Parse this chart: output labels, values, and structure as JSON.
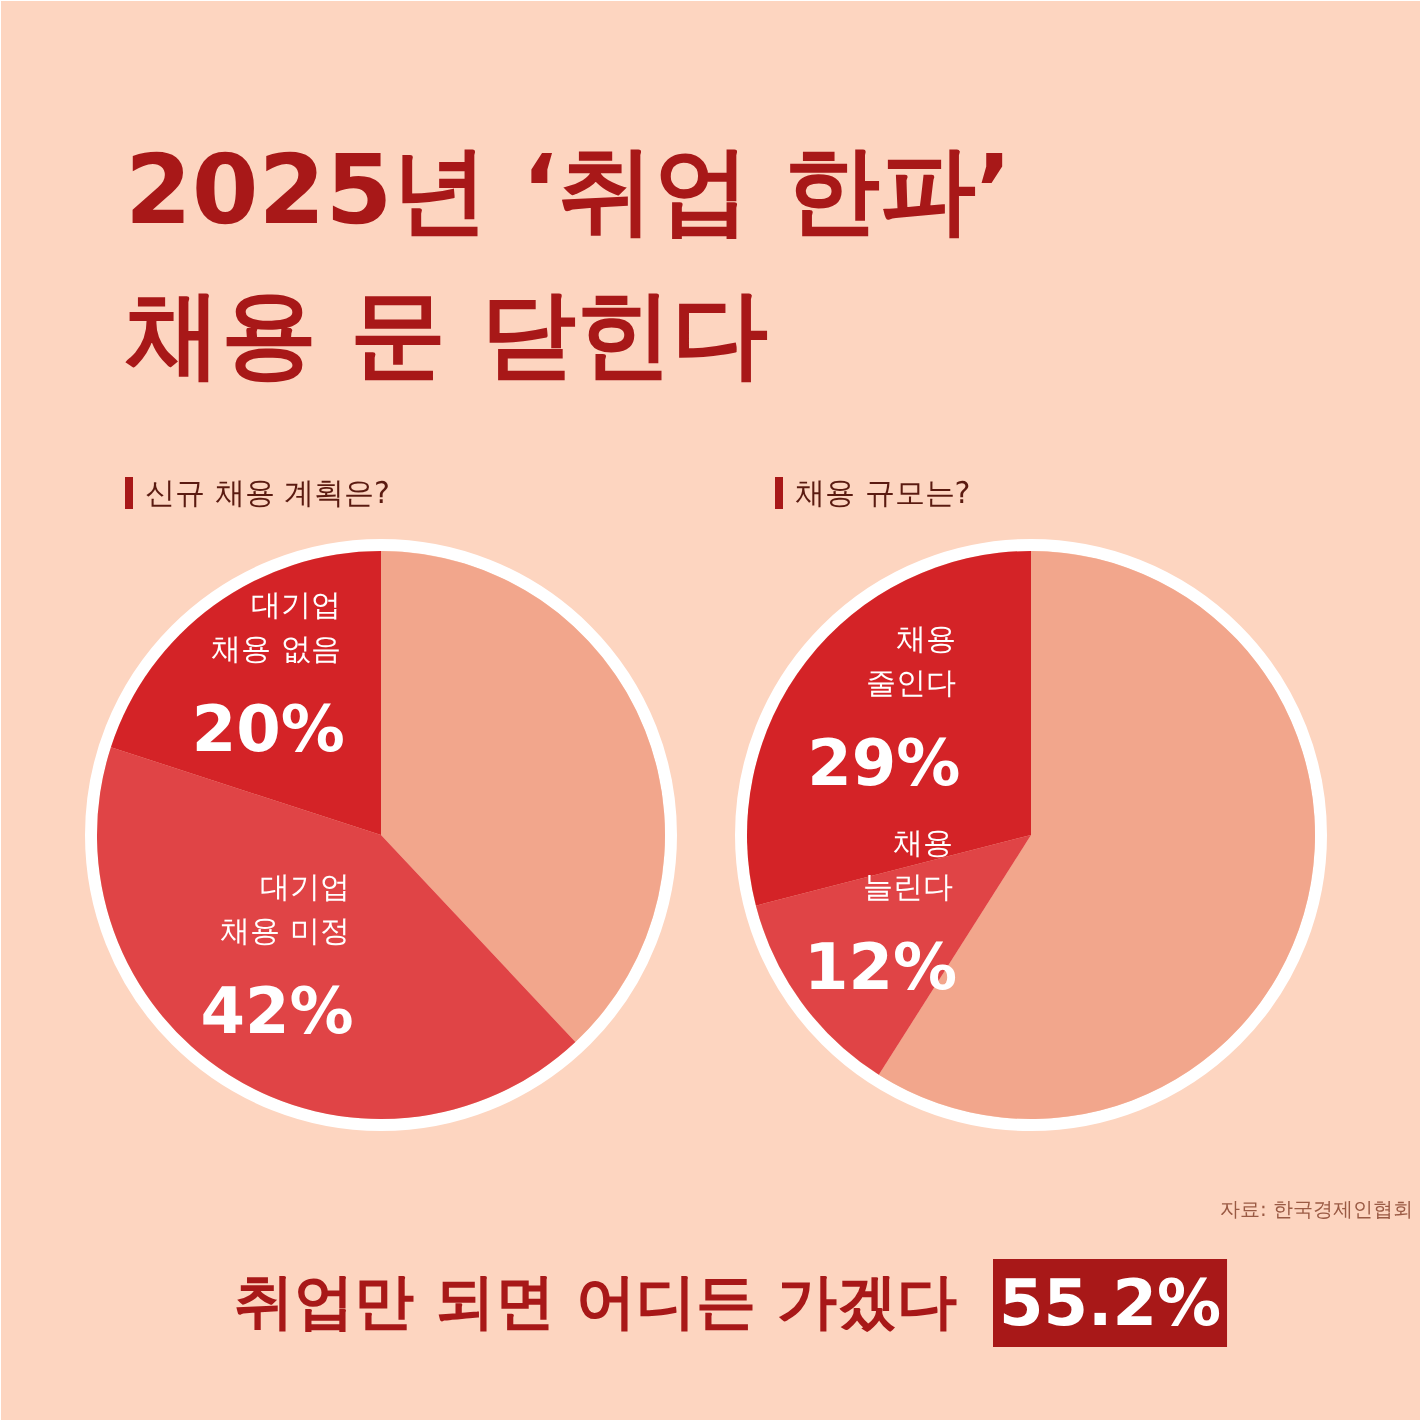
{
  "chart_data": [
    {
      "type": "other",
      "title": "2025년 ‘취업 한파’\n채용 문 닫힌다",
      "annotations": [
        "취업만 되면 어디든 가겠다",
        "55.2%",
        "자료: 한국경제인협회"
      ]
    },
    {
      "type": "pie",
      "title": "신규 채용 계획은?",
      "categories": [
        null,
        "대기업\n채용 미정",
        "대기업\n채용 없음"
      ],
      "values": [
        38,
        42,
        20
      ],
      "value_labels": [
        null,
        "42%",
        "20%"
      ],
      "colors": [
        "#f2a68c",
        "#e04446",
        "#d42327"
      ]
    },
    {
      "type": "pie",
      "title": "채용 규모는?",
      "categories": [
        null,
        "채용\n늘린다",
        "채용\n줄인다"
      ],
      "values": [
        59,
        12,
        29
      ],
      "value_labels": [
        null,
        "12%",
        "29%"
      ],
      "colors": [
        "#f2a68c",
        "#e04446",
        "#d42327"
      ]
    }
  ]
}
